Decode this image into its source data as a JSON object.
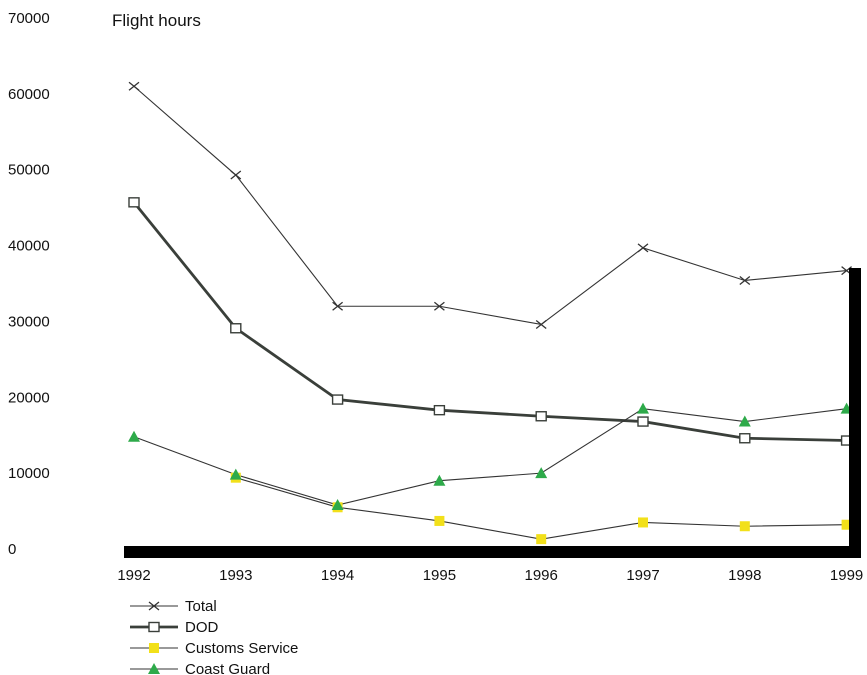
{
  "chart_data": {
    "type": "line",
    "title": "Flight hours",
    "xlabel": "",
    "ylabel": "",
    "x": [
      "1992",
      "1993",
      "1994",
      "1995",
      "1996",
      "1997",
      "1998",
      "1999"
    ],
    "ylim": [
      0,
      70000
    ],
    "yticks": [
      "0",
      "10000",
      "20000",
      "30000",
      "40000",
      "50000",
      "60000",
      "70000"
    ],
    "grid": false,
    "legend_position": "bottom-left",
    "series": [
      {
        "name": "Total",
        "marker": "x",
        "color": "#333333",
        "values": [
          61000,
          49300,
          32000,
          32000,
          29600,
          39700,
          35400,
          36700
        ]
      },
      {
        "name": "DOD",
        "marker": "open-square",
        "color": "#3a3f3a",
        "values": [
          45700,
          29100,
          19700,
          18300,
          17500,
          16800,
          14600,
          14300
        ]
      },
      {
        "name": "Customs Service",
        "marker": "filled-square",
        "color": "#f2e01a",
        "values": [
          null,
          9400,
          5500,
          3700,
          1300,
          3500,
          3000,
          3200
        ]
      },
      {
        "name": "Coast Guard",
        "marker": "filled-triangle",
        "color": "#2eaa4a",
        "values": [
          14800,
          9800,
          5800,
          9000,
          10000,
          18500,
          16800,
          18500
        ]
      }
    ]
  }
}
